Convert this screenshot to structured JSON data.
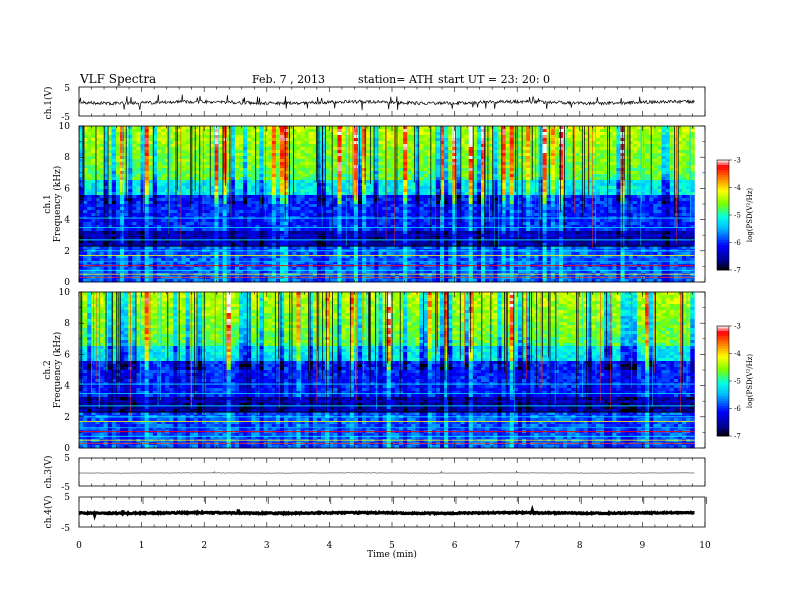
{
  "header": {
    "title": "VLF  Spectra",
    "date": "Feb. 7  , 2013",
    "station": "station= ATH",
    "start": "start  UT  =    23: 20: 0"
  },
  "chart_data": [
    {
      "type": "line",
      "ylabel": "ch.1(V)",
      "yticks": [
        "5",
        "-5"
      ],
      "ylim": [
        -5,
        5
      ],
      "description_series_level": 0
    },
    {
      "type": "heatmap",
      "panel": "ch.1",
      "ylabel": "Frequency  (kHz)",
      "channel_label": "ch.1",
      "yticks": [
        "0",
        "2",
        "4",
        "6",
        "8",
        "10"
      ],
      "ylim": [
        0,
        10
      ],
      "colorbar": {
        "label": "log(PSD(V²/Hz)",
        "ticks": [
          "-3",
          "-4",
          "-5",
          "-6",
          "-7"
        ],
        "range": [
          -7,
          -3
        ]
      }
    },
    {
      "type": "heatmap",
      "panel": "ch.2",
      "ylabel": "Frequency  (kHz)",
      "channel_label": "ch.2",
      "yticks": [
        "0",
        "2",
        "4",
        "6",
        "8",
        "10"
      ],
      "ylim": [
        0,
        10
      ],
      "colorbar": {
        "label": "log(PSD(V²/Hz)",
        "ticks": [
          "-3",
          "-4",
          "-5",
          "-6",
          "-7"
        ],
        "range": [
          -7,
          -3
        ]
      }
    },
    {
      "type": "line",
      "ylabel": "ch.3(V)",
      "yticks": [
        "5",
        "-5"
      ],
      "ylim": [
        -5,
        5
      ]
    },
    {
      "type": "line",
      "ylabel": "ch.4(V)",
      "yticks": [
        "5",
        "-5"
      ],
      "ylim": [
        -5,
        5
      ]
    }
  ],
  "xaxis": {
    "label": "Time  (min)",
    "ticks": [
      "0",
      "1",
      "2",
      "3",
      "4",
      "5",
      "6",
      "7",
      "8",
      "9",
      "10"
    ],
    "xlim": [
      0,
      10
    ],
    "data_end": 9.83
  },
  "colors": {
    "scale": [
      "#000000",
      "#00008b",
      "#0000ff",
      "#00bfff",
      "#00ffff",
      "#7fff00",
      "#ffff00",
      "#ff7f00",
      "#ff0000",
      "#ffffff"
    ]
  }
}
